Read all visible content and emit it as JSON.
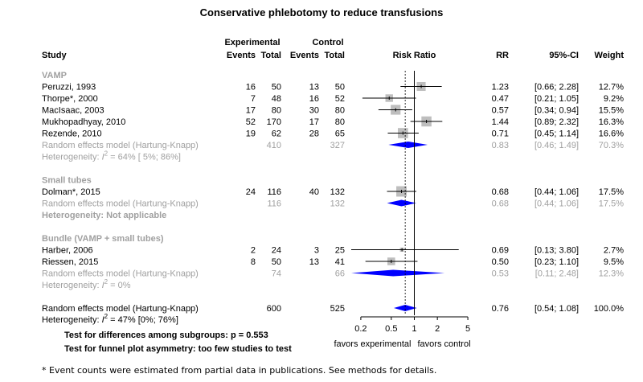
{
  "title": "Conservative phlebotomy to reduce transfusions",
  "headers": {
    "study": "Study",
    "experimental": "Experimental",
    "control": "Control",
    "events": "Events",
    "total": "Total",
    "risk_ratio": "Risk Ratio",
    "rr": "RR",
    "ci": "95%-CI",
    "weight": "Weight"
  },
  "footnote": "* Event counts were estimated from partial data in publications. See methods for details.",
  "chart_data": {
    "type": "forest",
    "scale": "log",
    "xlim": [
      0.15,
      7
    ],
    "ticks": [
      0.2,
      0.5,
      1,
      2,
      5
    ],
    "tick_labels": [
      "0.2",
      "0.5",
      "1",
      "2",
      "5"
    ],
    "null_value": 1,
    "overall_rr": 0.76,
    "favors_left": "favors experimental",
    "favors_right": "favors control",
    "colors": {
      "study_box": "#bebebe",
      "diamond": "#0000ff",
      "muted_text": "#a0a0a0",
      "line": "#000000"
    },
    "subgroups": [
      {
        "name": "VAMP",
        "studies": [
          {
            "label": "Peruzzi, 1993",
            "e_events": "16",
            "e_total": "50",
            "c_events": "13",
            "c_total": "50",
            "rr": 1.23,
            "lower": 0.66,
            "upper": 2.28,
            "rr_text": "1.23",
            "ci_text": "[0.66; 2.28]",
            "weight_text": "12.7%"
          },
          {
            "label": "Thorpe*, 2000",
            "e_events": "7",
            "e_total": "48",
            "c_events": "16",
            "c_total": "52",
            "rr": 0.47,
            "lower": 0.21,
            "upper": 1.05,
            "rr_text": "0.47",
            "ci_text": "[0.21; 1.05]",
            "weight_text": "9.2%"
          },
          {
            "label": "MacIsaac, 2003",
            "e_events": "17",
            "e_total": "80",
            "c_events": "30",
            "c_total": "80",
            "rr": 0.57,
            "lower": 0.34,
            "upper": 0.94,
            "rr_text": "0.57",
            "ci_text": "[0.34; 0.94]",
            "weight_text": "15.5%"
          },
          {
            "label": "Mukhopadhyay, 2010",
            "e_events": "52",
            "e_total": "170",
            "c_events": "17",
            "c_total": "80",
            "rr": 1.44,
            "lower": 0.89,
            "upper": 2.32,
            "rr_text": "1.44",
            "ci_text": "[0.89; 2.32]",
            "weight_text": "16.3%"
          },
          {
            "label": "Rezende, 2010",
            "e_events": "19",
            "e_total": "62",
            "c_events": "28",
            "c_total": "65",
            "rr": 0.71,
            "lower": 0.45,
            "upper": 1.14,
            "rr_text": "0.71",
            "ci_text": "[0.45; 1.14]",
            "weight_text": "16.6%"
          }
        ],
        "summary": {
          "label": "Random effects model  (Hartung-Knapp)",
          "e_total": "410",
          "c_total": "327",
          "rr": 0.83,
          "lower": 0.46,
          "upper": 1.49,
          "rr_text": "0.83",
          "ci_text": "[0.46; 1.49]",
          "weight_text": "70.3%"
        },
        "heterogeneity": {
          "prefix": "Heterogeneity: ",
          "i2_label": "I",
          "value": " = 64% [ 5%; 86%]",
          "na": ""
        }
      },
      {
        "name": "Small tubes",
        "studies": [
          {
            "label": "Dolman*, 2015",
            "e_events": "24",
            "e_total": "116",
            "c_events": "40",
            "c_total": "132",
            "rr": 0.68,
            "lower": 0.44,
            "upper": 1.06,
            "rr_text": "0.68",
            "ci_text": "[0.44; 1.06]",
            "weight_text": "17.5%"
          }
        ],
        "summary": {
          "label": "Random effects model  (Hartung-Knapp)",
          "e_total": "116",
          "c_total": "132",
          "rr": 0.68,
          "lower": 0.44,
          "upper": 1.06,
          "rr_text": "0.68",
          "ci_text": "[0.44; 1.06]",
          "weight_text": "17.5%"
        },
        "heterogeneity": {
          "prefix": "",
          "i2_label": "",
          "value": "",
          "na": "Heterogeneity: Not applicable"
        }
      },
      {
        "name": "Bundle (VAMP + small tubes)",
        "studies": [
          {
            "label": "Harber, 2006",
            "e_events": "2",
            "e_total": "24",
            "c_events": "3",
            "c_total": "25",
            "rr": 0.69,
            "lower": 0.13,
            "upper": 3.8,
            "rr_text": "0.69",
            "ci_text": "[0.13; 3.80]",
            "weight_text": "2.7%"
          },
          {
            "label": "Riessen, 2015",
            "e_events": "8",
            "e_total": "50",
            "c_events": "13",
            "c_total": "41",
            "rr": 0.5,
            "lower": 0.23,
            "upper": 1.1,
            "rr_text": "0.50",
            "ci_text": "[0.23; 1.10]",
            "weight_text": "9.5%"
          }
        ],
        "summary": {
          "label": "Random effects model  (Hartung-Knapp)",
          "e_total": "74",
          "c_total": "66",
          "rr": 0.53,
          "lower": 0.11,
          "upper": 2.48,
          "rr_text": "0.53",
          "ci_text": "[0.11; 2.48]",
          "weight_text": "12.3%"
        },
        "heterogeneity": {
          "prefix": "Heterogeneity: ",
          "i2_label": "I",
          "value": " = 0%",
          "na": ""
        }
      }
    ],
    "overall": {
      "label": "Random effects model  (Hartung-Knapp)",
      "e_total": "600",
      "c_total": "525",
      "rr": 0.76,
      "lower": 0.54,
      "upper": 1.08,
      "rr_text": "0.76",
      "ci_text": "[0.54; 1.08]",
      "weight_text": "100.0%",
      "heterogeneity": {
        "prefix": "Heterogeneity: ",
        "i2_label": "I",
        "value": " = 47% [0%; 76%]"
      }
    },
    "tests": [
      "Test for differences among subgroups: p = 0.553",
      "Test for funnel plot asymmetry: too few studies to test"
    ]
  }
}
